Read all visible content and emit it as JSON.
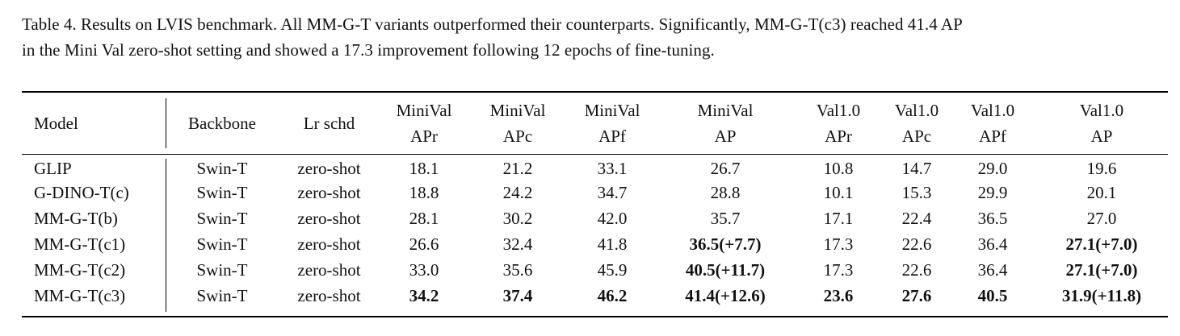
{
  "caption": {
    "line1": "Table 4. Results on LVIS benchmark. All MM-G-T variants outperformed their counterparts. Significantly, MM-G-T(c3) reached 41.4 AP",
    "line2": "in the Mini Val zero-shot setting and showed a 17.3 improvement following 12 epochs of fine-tuning."
  },
  "table": {
    "headers": [
      {
        "l1": "Model",
        "l2": ""
      },
      {
        "l1": "Backbone",
        "l2": ""
      },
      {
        "l1": "Lr schd",
        "l2": ""
      },
      {
        "l1": "MiniVal",
        "l2": "APr"
      },
      {
        "l1": "MiniVal",
        "l2": "APc"
      },
      {
        "l1": "MiniVal",
        "l2": "APf"
      },
      {
        "l1": "MiniVal",
        "l2": "AP"
      },
      {
        "l1": "Val1.0",
        "l2": "APr"
      },
      {
        "l1": "Val1.0",
        "l2": "APc"
      },
      {
        "l1": "Val1.0",
        "l2": "APf"
      },
      {
        "l1": "Val1.0",
        "l2": "AP"
      }
    ],
    "rows": [
      {
        "cells": [
          "GLIP",
          "Swin-T",
          "zero-shot",
          "18.1",
          "21.2",
          "33.1",
          "26.7",
          "10.8",
          "14.7",
          "29.0",
          "19.6"
        ],
        "bold": []
      },
      {
        "cells": [
          "G-DINO-T(c)",
          "Swin-T",
          "zero-shot",
          "18.8",
          "24.2",
          "34.7",
          "28.8",
          "10.1",
          "15.3",
          "29.9",
          "20.1"
        ],
        "bold": []
      },
      {
        "cells": [
          "MM-G-T(b)",
          "Swin-T",
          "zero-shot",
          "28.1",
          "30.2",
          "42.0",
          "35.7",
          "17.1",
          "22.4",
          "36.5",
          "27.0"
        ],
        "bold": []
      },
      {
        "cells": [
          "MM-G-T(c1)",
          "Swin-T",
          "zero-shot",
          "26.6",
          "32.4",
          "41.8",
          "36.5(+7.7)",
          "17.3",
          "22.6",
          "36.4",
          "27.1(+7.0)"
        ],
        "bold": [
          6,
          10
        ]
      },
      {
        "cells": [
          "MM-G-T(c2)",
          "Swin-T",
          "zero-shot",
          "33.0",
          "35.6",
          "45.9",
          "40.5(+11.7)",
          "17.3",
          "22.6",
          "36.4",
          "27.1(+7.0)"
        ],
        "bold": [
          6,
          10
        ]
      },
      {
        "cells": [
          "MM-G-T(c3)",
          "Swin-T",
          "zero-shot",
          "34.2",
          "37.4",
          "46.2",
          "41.4(+12.6)",
          "23.6",
          "27.6",
          "40.5",
          "31.9(+11.8)"
        ],
        "bold": [
          3,
          4,
          5,
          6,
          7,
          8,
          9,
          10
        ]
      }
    ]
  }
}
